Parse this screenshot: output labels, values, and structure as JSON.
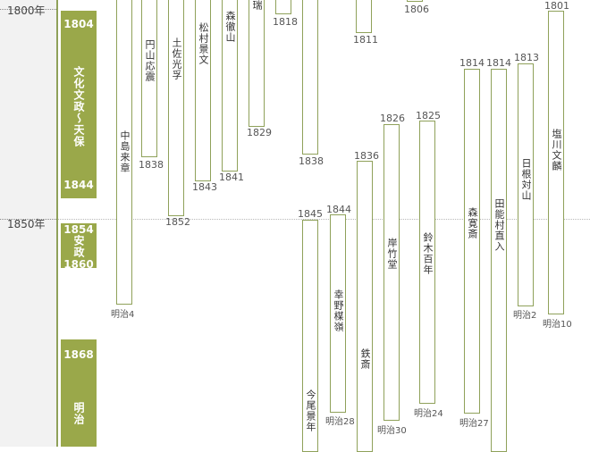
{
  "axis": {
    "y1800": "1800年",
    "y1850": "1850年"
  },
  "eras": {
    "bunka": {
      "start": "1804",
      "name": "文化文政～天保",
      "end": "1844"
    },
    "ansei": {
      "start": "1854",
      "name": "安政",
      "end": "1860"
    },
    "meiji": {
      "start": "1868",
      "name": "明治"
    }
  },
  "persons": {
    "kitoku": {
      "name": "中島来章",
      "end": "明治4"
    },
    "maruyama": {
      "name": "円山応震",
      "end": "1838"
    },
    "tosa": {
      "name": "土佐光孚",
      "end": "1852"
    },
    "matsumura": {
      "name": "松村景文",
      "end": "1843"
    },
    "mori_tetsu": {
      "name": "森徹山",
      "end": "1841"
    },
    "zui": {
      "name": "瑞",
      "end": "1829"
    },
    "p1818": {
      "end": "1818"
    },
    "p1838b": {
      "end": "1838"
    },
    "p1811": {
      "end": "1811"
    },
    "p1806": {
      "end": "1806"
    },
    "imao": {
      "name": "今尾景年",
      "start": "1845"
    },
    "koeno": {
      "name": "幸野楳嶺",
      "start": "1844",
      "end": "明治28"
    },
    "tessai": {
      "name": "鉄斎",
      "start": "1836"
    },
    "gan": {
      "name": "岸竹堂",
      "start": "1826",
      "end": "明治30"
    },
    "suzuki": {
      "name": "鈴木百年",
      "start": "1825",
      "end": "明治24"
    },
    "mori_kan": {
      "name": "森寛斎",
      "start": "1814",
      "end": "明治27"
    },
    "tanomura": {
      "name": "田能村直入",
      "start": "1814"
    },
    "hine": {
      "name": "日根対山",
      "start": "1813",
      "end": "明治2"
    },
    "shiokawa": {
      "name": "塩川文麟",
      "start": "1801",
      "end": "明治10"
    }
  }
}
